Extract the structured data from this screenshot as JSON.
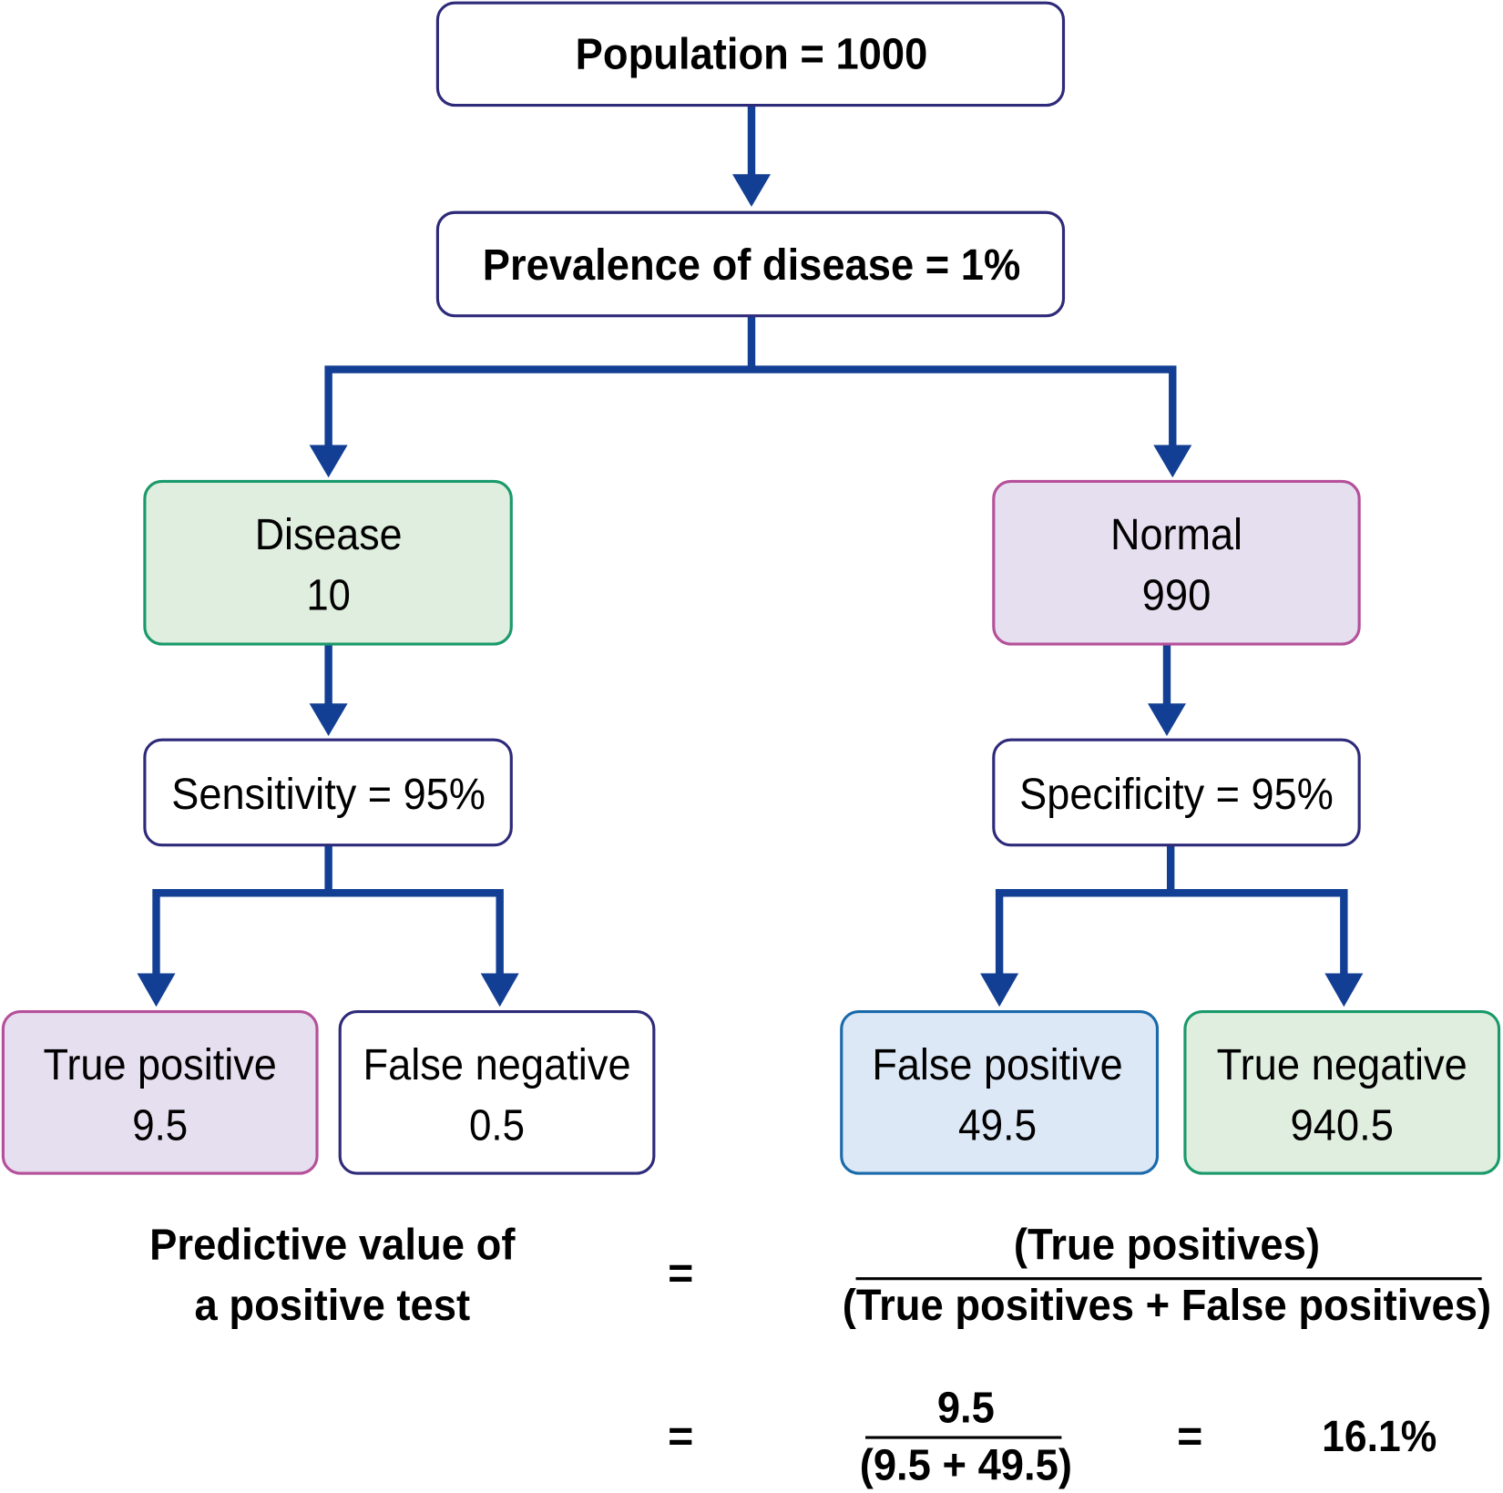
{
  "nodes": {
    "population": {
      "label": "Population = 1000"
    },
    "prevalence": {
      "label": "Prevalence of disease = 1%"
    },
    "disease": {
      "label": "Disease",
      "value": "10"
    },
    "normal": {
      "label": "Normal",
      "value": "990"
    },
    "sensitivity": {
      "label": "Sensitivity = 95%"
    },
    "specificity": {
      "label": "Specificity = 95%"
    },
    "true_positive": {
      "label": "True positive",
      "value": "9.5"
    },
    "false_negative": {
      "label": "False negative",
      "value": "0.5"
    },
    "false_positive": {
      "label": "False positive",
      "value": "49.5"
    },
    "true_negative": {
      "label": "True negative",
      "value": "940.5"
    }
  },
  "formula": {
    "lhs_line1": "Predictive value of",
    "lhs_line2": "a positive test",
    "equals": "=",
    "numerator": "(True positives)",
    "denominator": "(True positives + False positives)",
    "calc_numerator": "9.5",
    "calc_denominator": "(9.5 + 49.5)",
    "result": "16.1%"
  },
  "colors": {
    "arrow": "#123f94",
    "navy_border": "#2e2a7a",
    "green_fill": "#e0eedf",
    "green_border": "#1a9a6a",
    "purple_fill": "#e6dff0",
    "purple_border": "#b5509a",
    "blue_fill": "#dde8f6",
    "blue_border": "#1a6aaa"
  }
}
